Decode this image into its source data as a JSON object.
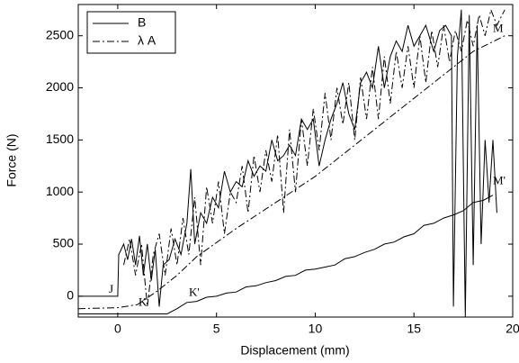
{
  "chart_data": {
    "type": "line",
    "x_label": "Displacement (mm)",
    "y_label": "Force (N)",
    "xlim": [
      -2,
      20
    ],
    "ylim": [
      -200,
      2800
    ],
    "xticks": [
      0,
      5,
      10,
      15,
      20
    ],
    "yticks": [
      0,
      500,
      1000,
      1500,
      2000,
      2500
    ],
    "grid": false,
    "legend": "upper left",
    "series": [
      {
        "name": "B",
        "color": "#000000",
        "linestyle": "solid",
        "x": [
          -2,
          0,
          0.05,
          0.3,
          0.5,
          0.7,
          0.9,
          1.1,
          1.3,
          1.5,
          1.7,
          1.9,
          2.1,
          2.3,
          2.6,
          2.9,
          3.2,
          3.5,
          3.7,
          3.9,
          4.2,
          4.5,
          4.8,
          5.1,
          5.4,
          5.7,
          6.0,
          6.3,
          6.6,
          6.9,
          7.2,
          7.5,
          7.8,
          8.1,
          8.4,
          8.7,
          9.0,
          9.3,
          9.6,
          9.9,
          10.2,
          10.5,
          10.8,
          11.1,
          11.4,
          11.7,
          12.0,
          12.3,
          12.6,
          12.9,
          13.2,
          13.5,
          13.8,
          14.1,
          14.4,
          14.7,
          15.0,
          15.3,
          15.6,
          16.0,
          16.3,
          16.6,
          16.9,
          17.0,
          17.2,
          17.4,
          17.6,
          17.8,
          18.0,
          18.2,
          18.4,
          18.6,
          18.8,
          19.0,
          19.2
        ],
        "values": [
          0,
          0,
          400,
          500,
          350,
          550,
          300,
          580,
          200,
          500,
          150,
          450,
          -100,
          300,
          350,
          550,
          400,
          700,
          1220,
          500,
          800,
          700,
          950,
          850,
          1200,
          1000,
          1100,
          1050,
          1300,
          1150,
          1250,
          1200,
          1500,
          1300,
          1350,
          1450,
          1350,
          1700,
          1600,
          1700,
          1250,
          1500,
          1700,
          1850,
          2050,
          1750,
          1600,
          2050,
          2150,
          2000,
          2400,
          2000,
          2300,
          2450,
          2350,
          2600,
          2400,
          2500,
          2600,
          2350,
          2550,
          2600,
          2500,
          -100,
          2300,
          2750,
          -200,
          2700,
          300,
          2600,
          500,
          1500,
          900,
          1500,
          800
        ]
      },
      {
        "name": "λ A",
        "color": "#000000",
        "linestyle": "dashdot",
        "x": [
          0.3,
          0.6,
          0.9,
          1.2,
          1.5,
          1.8,
          2.1,
          2.4,
          2.7,
          3.0,
          3.3,
          3.6,
          3.9,
          4.2,
          4.5,
          4.8,
          5.1,
          5.4,
          5.7,
          6.0,
          6.3,
          6.6,
          6.9,
          7.2,
          7.5,
          7.8,
          8.1,
          8.4,
          8.7,
          9.0,
          9.3,
          9.6,
          9.9,
          10.2,
          10.5,
          10.8,
          11.1,
          11.4,
          11.7,
          12.0,
          12.3,
          12.6,
          12.9,
          13.2,
          13.5,
          13.8,
          14.1,
          14.4,
          14.7,
          15.0,
          15.3,
          15.6,
          15.9,
          16.2,
          16.5,
          16.8,
          17.1,
          17.4,
          17.7,
          18.0,
          18.3,
          18.6,
          18.9,
          19.2,
          19.6
        ],
        "values": [
          300,
          550,
          200,
          500,
          -100,
          400,
          600,
          200,
          650,
          300,
          750,
          400,
          950,
          300,
          1050,
          700,
          1100,
          600,
          1000,
          900,
          1250,
          800,
          1350,
          1000,
          1400,
          1100,
          1550,
          800,
          1600,
          1000,
          1700,
          1250,
          1800,
          1400,
          1950,
          1500,
          2000,
          1650,
          2050,
          1500,
          2100,
          1700,
          2200,
          1700,
          2300,
          1850,
          2350,
          2000,
          2400,
          2000,
          2500,
          2050,
          2550,
          2200,
          2600,
          2250,
          2550,
          2350,
          2650,
          2400,
          2700,
          2500,
          2750,
          2600,
          2750
        ]
      },
      {
        "color": "#000000",
        "linestyle": "solid",
        "x": [
          -2,
          2.5,
          3,
          3.5,
          4,
          4.5,
          5,
          5.5,
          6,
          6.5,
          7,
          7.5,
          8,
          8.5,
          9,
          9.5,
          10,
          10.5,
          11,
          11.5,
          12,
          12.5,
          13,
          13.5,
          14,
          14.5,
          15,
          15.5,
          16,
          16.5,
          17,
          17.5,
          18,
          18.5,
          19
        ],
        "values": [
          -170,
          -170,
          -120,
          -60,
          -50,
          -10,
          0,
          30,
          40,
          90,
          100,
          130,
          150,
          190,
          200,
          250,
          260,
          280,
          300,
          360,
          380,
          420,
          450,
          500,
          520,
          570,
          600,
          680,
          700,
          750,
          780,
          820,
          900,
          920,
          970
        ]
      },
      {
        "color": "#000000",
        "linestyle": "dashdot",
        "x": [
          -2,
          0,
          1,
          2,
          3,
          4,
          6,
          8,
          10,
          12,
          14,
          16,
          18,
          19.6
        ],
        "values": [
          -120,
          -110,
          -80,
          50,
          200,
          380,
          650,
          900,
          1150,
          1450,
          1750,
          2050,
          2350,
          2500
        ]
      }
    ],
    "annotations": [
      {
        "text": "J",
        "x": -0.45,
        "y": 60
      },
      {
        "text": "K",
        "x": 1.05,
        "y": -65
      },
      {
        "text": "K'",
        "x": 3.6,
        "y": 30
      },
      {
        "text": "M",
        "x": 19.0,
        "y": 2560
      },
      {
        "text": "M'",
        "x": 19.0,
        "y": 1100
      }
    ]
  }
}
